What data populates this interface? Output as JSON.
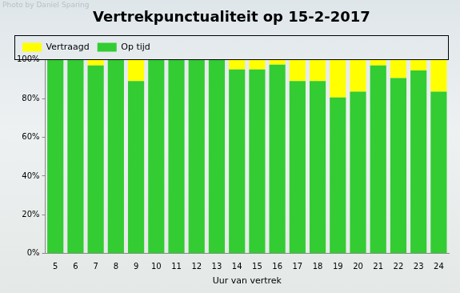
{
  "chart_data": {
    "type": "bar",
    "title": "Vertrekpunctualiteit op 15-2-2017",
    "x_label": "Uur van vertrek",
    "annotations": [
      "Photo by Daniel Sparing"
    ],
    "categories": [
      5,
      6,
      7,
      8,
      9,
      10,
      11,
      12,
      13,
      14,
      15,
      16,
      17,
      18,
      19,
      20,
      21,
      22,
      23,
      24
    ],
    "series": [
      {
        "name": "Vertraagd",
        "color": "#ffff00",
        "values": [
          0,
          0,
          3,
          0,
          11,
          0,
          0,
          0,
          0,
          5,
          5,
          2.5,
          11,
          11,
          19.5,
          16.5,
          3,
          9.5,
          5.5,
          16.5
        ]
      },
      {
        "name": "Op tijd",
        "color": "#33cc33",
        "values": [
          100,
          100,
          97,
          100,
          89,
          100,
          100,
          100,
          100,
          95,
          95,
          97.5,
          89,
          89,
          80.5,
          83.5,
          97,
          90.5,
          94.5,
          83.5
        ]
      }
    ],
    "stacked": true,
    "legend": "top-left",
    "grid": false,
    "ylim": [
      0,
      100
    ],
    "yticks": [
      {
        "value": 0,
        "label": "0%"
      },
      {
        "value": 20,
        "label": "20%"
      },
      {
        "value": 40,
        "label": "40%"
      },
      {
        "value": 60,
        "label": "60%"
      },
      {
        "value": 80,
        "label": "80%"
      },
      {
        "value": 100,
        "label": "100%"
      }
    ]
  }
}
